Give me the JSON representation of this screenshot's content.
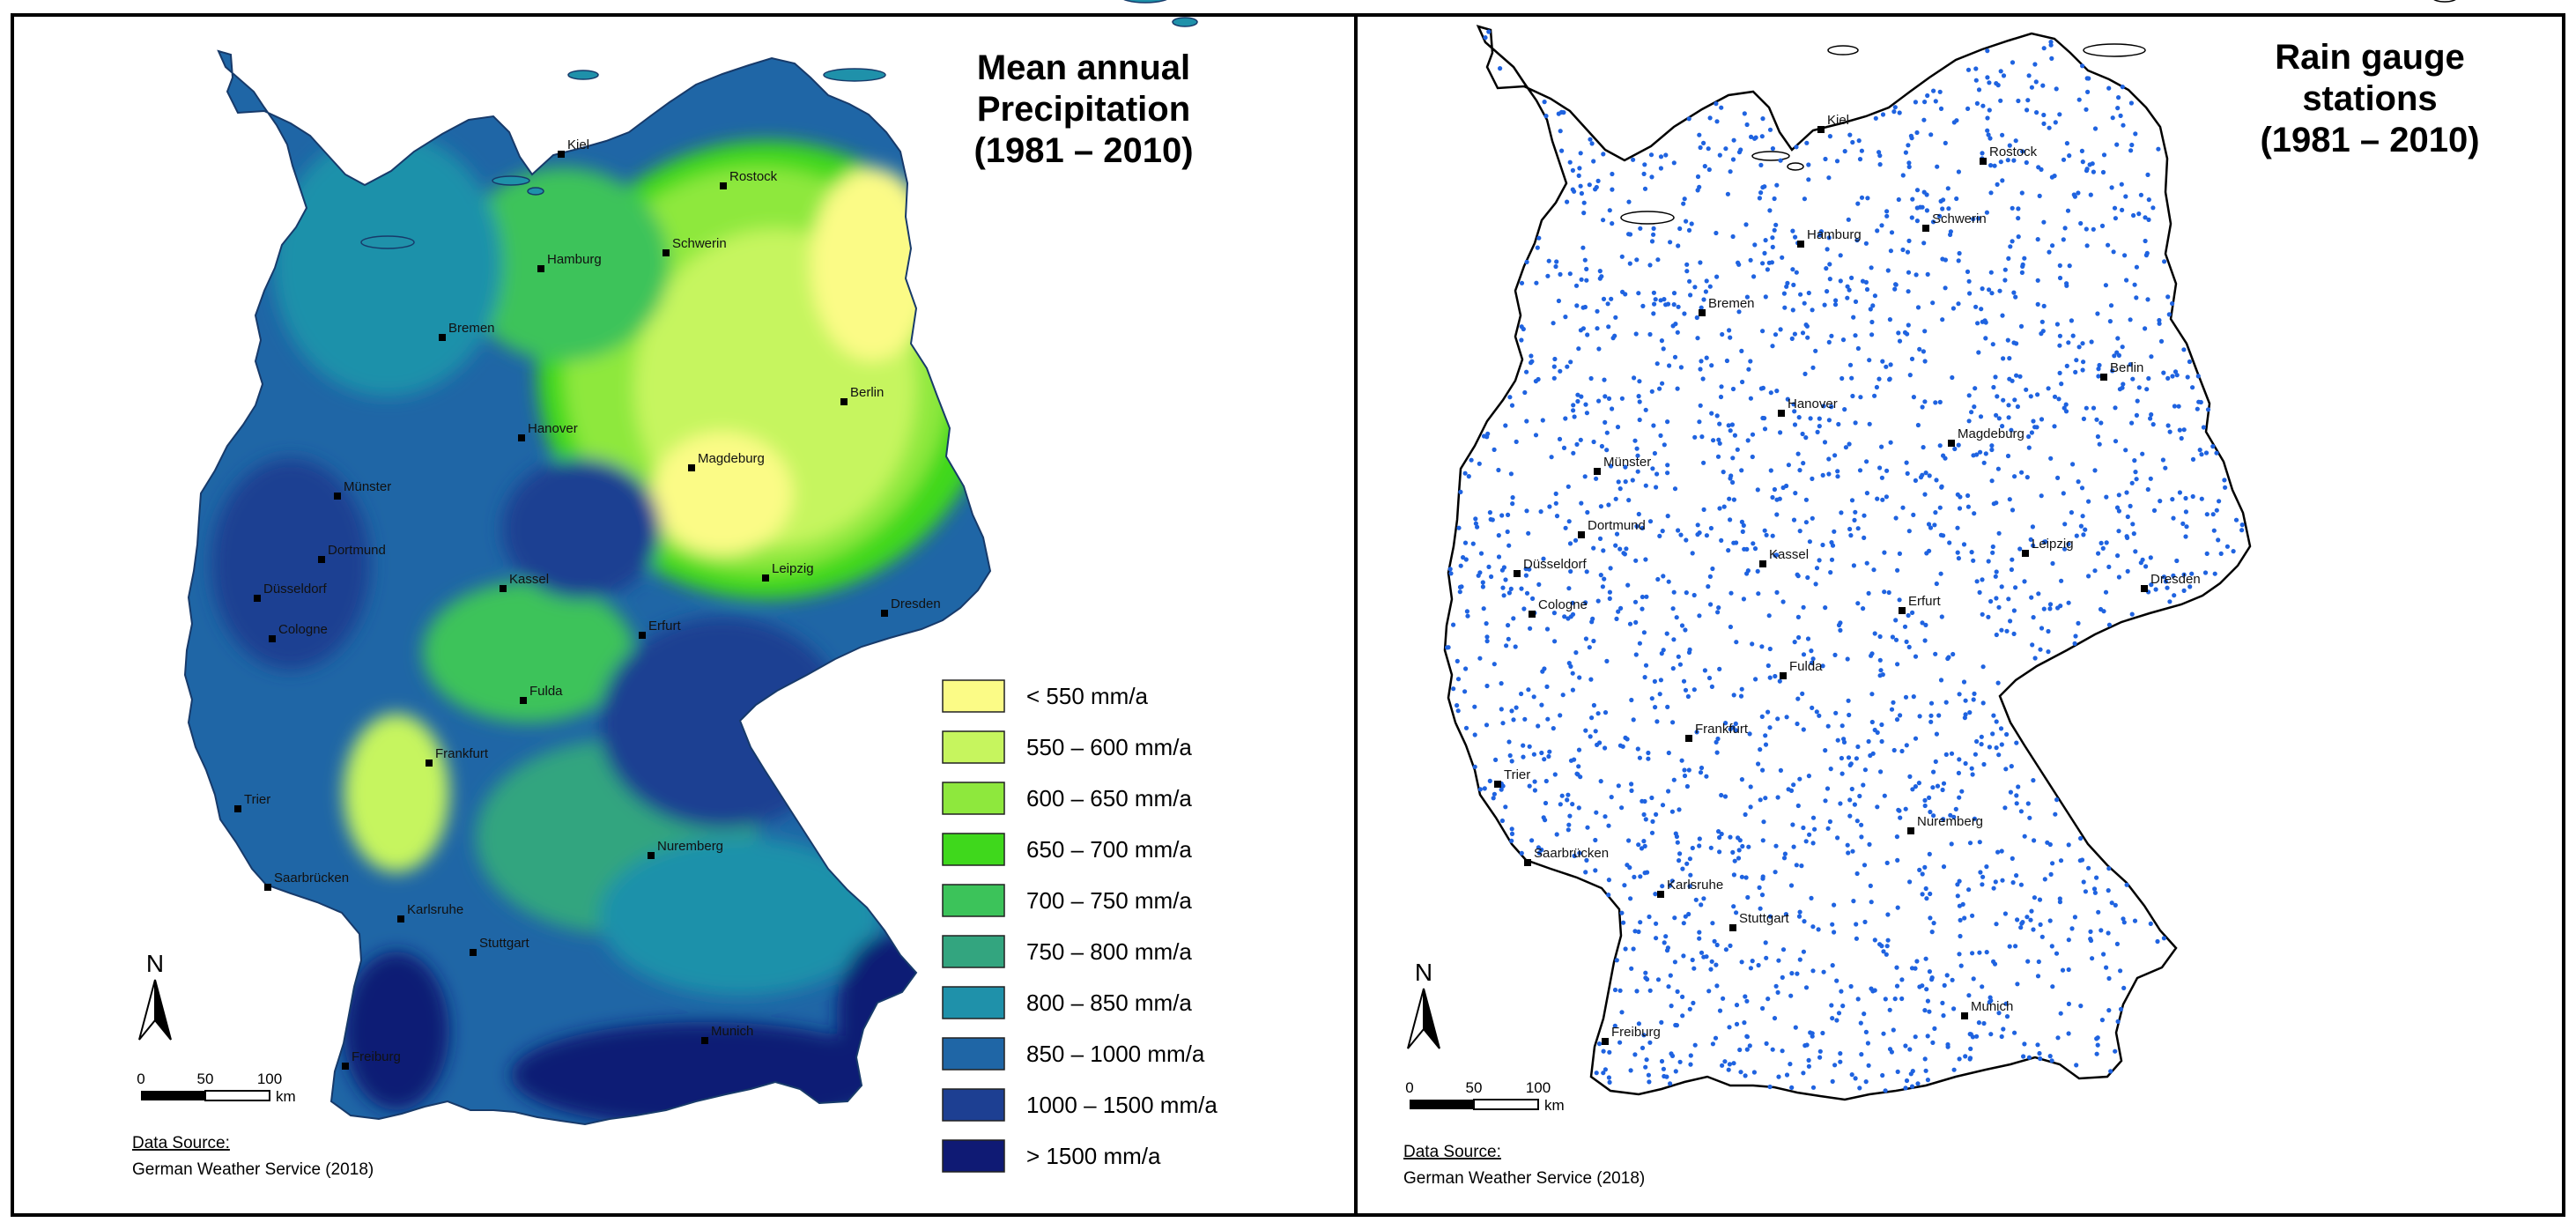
{
  "left_panel": {
    "title_lines": [
      "Mean annual",
      "Precipitation",
      "(1981 – 2010)"
    ],
    "legend": [
      {
        "label": "< 550 mm/a",
        "color": "#fbfb86"
      },
      {
        "label": "550 – 600 mm/a",
        "color": "#c6f55e"
      },
      {
        "label": "600 – 650 mm/a",
        "color": "#8ee83d"
      },
      {
        "label": "650 – 700 mm/a",
        "color": "#3fd81c"
      },
      {
        "label": "700 – 750 mm/a",
        "color": "#3cc35a"
      },
      {
        "label": "750 – 800 mm/a",
        "color": "#33a57f"
      },
      {
        "label": "800 – 850 mm/a",
        "color": "#1f91aa"
      },
      {
        "label": "850 – 1000 mm/a",
        "color": "#1f66a6"
      },
      {
        "label": "1000 – 1500 mm/a",
        "color": "#1d3f92"
      },
      {
        "label": "> 1500 mm/a",
        "color": "#0f1a74"
      }
    ]
  },
  "right_panel": {
    "title_lines": [
      "Rain gauge",
      "stations",
      "(1981 – 2010)"
    ],
    "station_color": "#1f63e0"
  },
  "cities": [
    {
      "name": "Kiel"
    },
    {
      "name": "Rostock"
    },
    {
      "name": "Hamburg"
    },
    {
      "name": "Schwerin"
    },
    {
      "name": "Bremen"
    },
    {
      "name": "Berlin"
    },
    {
      "name": "Hanover"
    },
    {
      "name": "Magdeburg"
    },
    {
      "name": "Münster"
    },
    {
      "name": "Dortmund"
    },
    {
      "name": "Düsseldorf"
    },
    {
      "name": "Cologne"
    },
    {
      "name": "Kassel"
    },
    {
      "name": "Leipzig"
    },
    {
      "name": "Dresden"
    },
    {
      "name": "Erfurt"
    },
    {
      "name": "Fulda"
    },
    {
      "name": "Frankfurt"
    },
    {
      "name": "Trier"
    },
    {
      "name": "Nuremberg"
    },
    {
      "name": "Saarbrücken"
    },
    {
      "name": "Karlsruhe"
    },
    {
      "name": "Stuttgart"
    },
    {
      "name": "Munich"
    },
    {
      "name": "Freiburg"
    }
  ],
  "north_arrow": {
    "label": "N"
  },
  "scale_bar": {
    "ticks": [
      "0",
      "50",
      "100"
    ],
    "unit": "km"
  },
  "source": {
    "label": "Data Source:",
    "value": "German Weather Service (2018)"
  }
}
